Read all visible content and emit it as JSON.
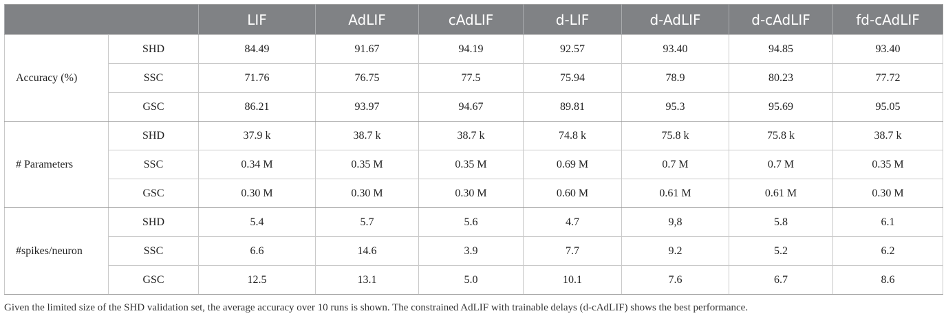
{
  "table": {
    "columns": [
      "LIF",
      "AdLIF",
      "cAdLIF",
      "d-LIF",
      "d-AdLIF",
      "d-cAdLIF",
      "fd-cAdLIF"
    ],
    "groups": [
      {
        "label": "Accuracy (%)",
        "rows": [
          {
            "dataset": "SHD",
            "values": [
              "84.49",
              "91.67",
              "94.19",
              "92.57",
              "93.40",
              "94.85",
              "93.40"
            ]
          },
          {
            "dataset": "SSC",
            "values": [
              "71.76",
              "76.75",
              "77.5",
              "75.94",
              "78.9",
              "80.23",
              "77.72"
            ]
          },
          {
            "dataset": "GSC",
            "values": [
              "86.21",
              "93.97",
              "94.67",
              "89.81",
              "95.3",
              "95.69",
              "95.05"
            ]
          }
        ]
      },
      {
        "label": "# Parameters",
        "rows": [
          {
            "dataset": "SHD",
            "values": [
              "37.9 k",
              "38.7 k",
              "38.7 k",
              "74.8 k",
              "75.8 k",
              "75.8 k",
              "38.7 k"
            ]
          },
          {
            "dataset": "SSC",
            "values": [
              "0.34 M",
              "0.35 M",
              "0.35 M",
              "0.69 M",
              "0.7 M",
              "0.7 M",
              "0.35 M"
            ]
          },
          {
            "dataset": "GSC",
            "values": [
              "0.30 M",
              "0.30 M",
              "0.30 M",
              "0.60 M",
              "0.61 M",
              "0.61 M",
              "0.30 M"
            ]
          }
        ]
      },
      {
        "label": "#spikes/neuron",
        "rows": [
          {
            "dataset": "SHD",
            "values": [
              "5.4",
              "5.7",
              "5.6",
              "4.7",
              "9,8",
              "5.8",
              "6.1"
            ]
          },
          {
            "dataset": "SSC",
            "values": [
              "6.6",
              "14.6",
              "3.9",
              "7.7",
              "9.2",
              "5.2",
              "6.2"
            ]
          },
          {
            "dataset": "GSC",
            "values": [
              "12.5",
              "13.1",
              "5.0",
              "10.1",
              "7.6",
              "6.7",
              "8.6"
            ]
          }
        ]
      }
    ],
    "footnote": "Given the limited size of the SHD validation set, the average accuracy over 10 runs is shown. The constrained AdLIF with trainable delays (d-cAdLIF) shows the best performance."
  }
}
